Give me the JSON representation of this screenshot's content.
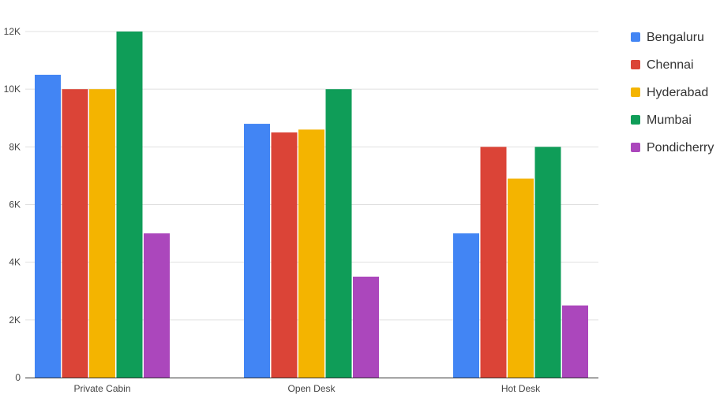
{
  "chart_data": {
    "type": "bar",
    "title": "",
    "xlabel": "",
    "ylabel": "",
    "categories": [
      "Private Cabin",
      "Open Desk",
      "Hot Desk"
    ],
    "series": [
      {
        "name": "Bengaluru",
        "color": "#4285f4",
        "values": [
          10500,
          8800,
          5000
        ]
      },
      {
        "name": "Chennai",
        "color": "#db4437",
        "values": [
          10000,
          8500,
          8000
        ]
      },
      {
        "name": "Hyderabad",
        "color": "#f4b400",
        "values": [
          10000,
          8600,
          6900
        ]
      },
      {
        "name": "Mumbai",
        "color": "#0f9d58",
        "values": [
          12000,
          10000,
          8000
        ]
      },
      {
        "name": "Pondicherry",
        "color": "#ab47bc",
        "values": [
          5000,
          3500,
          2500
        ]
      }
    ],
    "ylim": [
      0,
      12000
    ],
    "y_ticks": [
      {
        "value": 0,
        "label": "0"
      },
      {
        "value": 2000,
        "label": "2K"
      },
      {
        "value": 4000,
        "label": "4K"
      },
      {
        "value": 6000,
        "label": "6K"
      },
      {
        "value": 8000,
        "label": "8K"
      },
      {
        "value": 10000,
        "label": "10K"
      },
      {
        "value": 12000,
        "label": "12K"
      }
    ],
    "grid": true,
    "legend_position": "right"
  }
}
